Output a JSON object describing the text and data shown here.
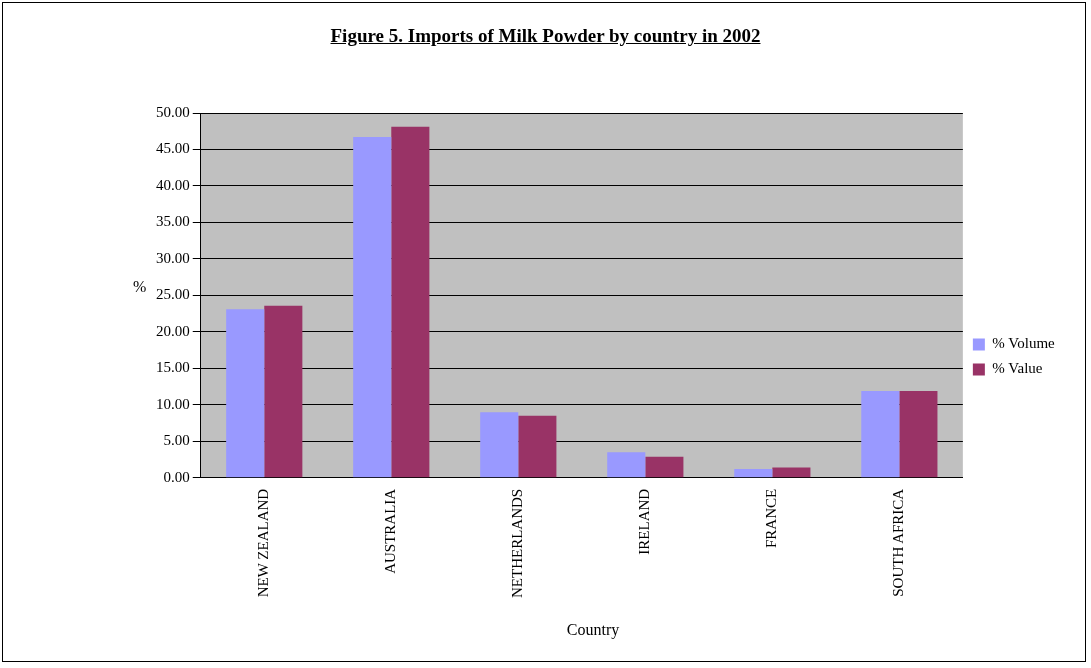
{
  "chart_data": {
    "type": "bar",
    "title": "Figure 5. Imports of Milk Powder by country in 2002",
    "xlabel": "Country",
    "ylabel": "%",
    "categories": [
      "NEW ZEALAND",
      "AUSTRALIA",
      "NETHERLANDS",
      "IRELAND",
      "FRANCE",
      "SOUTH AFRICA"
    ],
    "series": [
      {
        "name": "% Volume",
        "color": "#9999ff",
        "values": [
          23.1,
          46.7,
          9.0,
          3.5,
          1.2,
          11.9
        ]
      },
      {
        "name": "% Value",
        "color": "#993366",
        "values": [
          23.6,
          48.1,
          8.5,
          2.9,
          1.4,
          11.9
        ]
      }
    ],
    "ylim": [
      0,
      50
    ],
    "yticks": [
      {
        "value": 0,
        "label": "0.00"
      },
      {
        "value": 5,
        "label": "5.00"
      },
      {
        "value": 10,
        "label": "10.00"
      },
      {
        "value": 15,
        "label": "15.00"
      },
      {
        "value": 20,
        "label": "20.00"
      },
      {
        "value": 25,
        "label": "25.00"
      },
      {
        "value": 30,
        "label": "30.00"
      },
      {
        "value": 35,
        "label": "35.00"
      },
      {
        "value": 40,
        "label": "40.00"
      },
      {
        "value": 45,
        "label": "45.00"
      },
      {
        "value": 50,
        "label": "50.00"
      }
    ],
    "grid": "y",
    "legend": "right"
  }
}
